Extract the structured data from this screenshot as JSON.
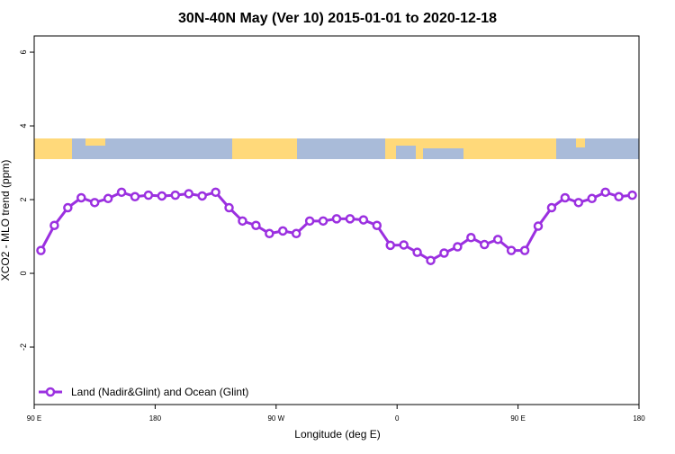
{
  "chart_data": {
    "type": "line",
    "title": "30N-40N May (Ver 10)   2015-01-01 to 2020-12-18",
    "xlabel": "Longitude (deg E)",
    "ylabel": "XCO2 - MLO trend (ppm)",
    "x": [
      95,
      105,
      115,
      125,
      135,
      145,
      155,
      165,
      175,
      185,
      195,
      205,
      215,
      225,
      235,
      245,
      255,
      265,
      275,
      285,
      295,
      305,
      315,
      325,
      335,
      345,
      355,
      365,
      375,
      385,
      395,
      405,
      415,
      425,
      435,
      445,
      455,
      465,
      475,
      485,
      495,
      505,
      515,
      525,
      535
    ],
    "series": [
      {
        "name": "Land (Nadir&Glint) and Ocean (Glint)",
        "color": "#9b30e0",
        "values": [
          0.62,
          1.3,
          1.78,
          2.05,
          1.92,
          2.03,
          2.2,
          2.08,
          2.12,
          2.1,
          2.12,
          2.16,
          2.1,
          2.2,
          1.78,
          1.42,
          1.3,
          1.08,
          1.15,
          1.08,
          1.42,
          1.42,
          1.48,
          1.48,
          1.45,
          1.3,
          0.76,
          0.77,
          0.57,
          0.35,
          0.55,
          0.72,
          0.97,
          0.78,
          0.92,
          0.62,
          0.62,
          1.28,
          1.78,
          2.05,
          1.92,
          2.03,
          2.2,
          2.08,
          2.12
        ]
      }
    ],
    "xlim": [
      90,
      540
    ],
    "xticks": [
      {
        "value": 90,
        "label": "90 E"
      },
      180,
      {
        "value": 270,
        "label": "90 W"
      },
      {
        "value": 360,
        "label": "0"
      },
      {
        "value": 450,
        "label": "90 E"
      },
      {
        "value": 540,
        "label": "180"
      }
    ],
    "ylim": [
      -3.56,
      6.44
    ],
    "yticks": [
      -2,
      0,
      2,
      4,
      6
    ],
    "legend": "bottom-left"
  }
}
